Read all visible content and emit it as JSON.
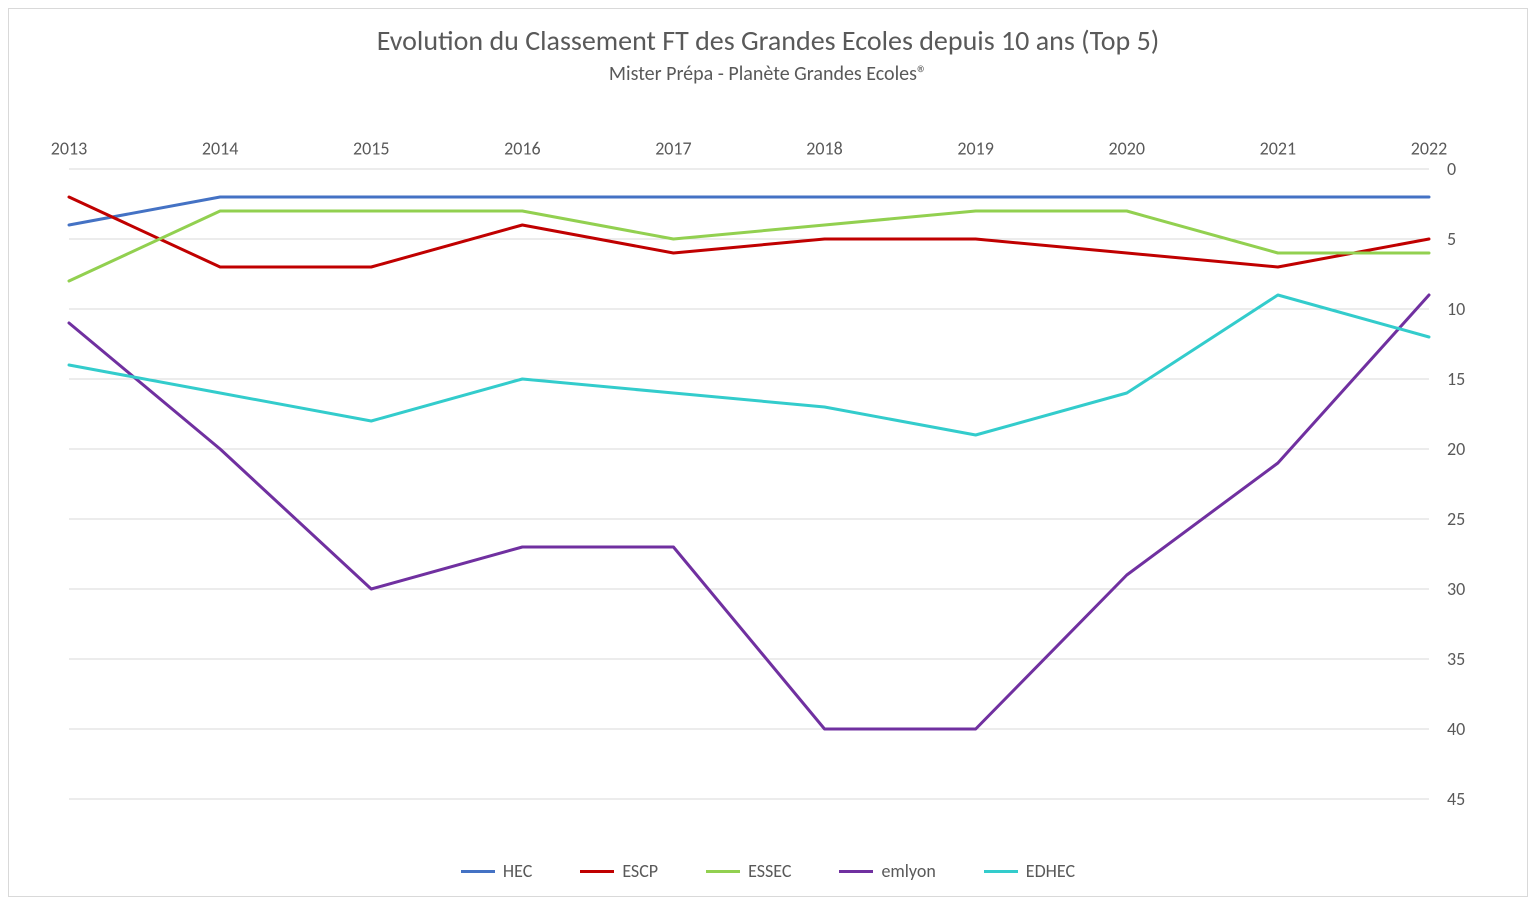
{
  "title": "Evolution du Classement FT des Grandes Ecoles depuis 10 ans (Top 5)",
  "subtitle": "Mister Prépa - Planète Grandes Ecoles®",
  "title_fontsize": 28,
  "subtitle_fontsize": 20,
  "text_color": "#595959",
  "background_color": "#ffffff",
  "frame_border_color": "#d9d9d9",
  "grid_color": "#d9d9d9",
  "chart": {
    "type": "line",
    "x_categories": [
      "2013",
      "2014",
      "2015",
      "2016",
      "2017",
      "2018",
      "2019",
      "2020",
      "2021",
      "2022"
    ],
    "y_axis": {
      "min": 0,
      "max": 45,
      "tick_step": 5,
      "position": "right",
      "inverted": true
    },
    "line_width": 3,
    "tick_fontsize": 18,
    "series": [
      {
        "name": "HEC",
        "color": "#4472c4",
        "values": [
          4,
          2,
          2,
          2,
          2,
          2,
          2,
          2,
          2,
          2
        ]
      },
      {
        "name": "ESCP",
        "color": "#c00000",
        "values": [
          2,
          7,
          7,
          4,
          6,
          5,
          5,
          6,
          7,
          5
        ]
      },
      {
        "name": "ESSEC",
        "color": "#92d050",
        "values": [
          8,
          3,
          3,
          3,
          5,
          4,
          3,
          3,
          6,
          6
        ]
      },
      {
        "name": "emlyon",
        "color": "#7030a0",
        "values": [
          11,
          20,
          30,
          27,
          27,
          40,
          40,
          29,
          21,
          9
        ]
      },
      {
        "name": "EDHEC",
        "color": "#33cccc",
        "values": [
          14,
          16,
          18,
          15,
          16,
          17,
          19,
          16,
          9,
          12
        ]
      }
    ]
  },
  "legend": {
    "position": "bottom",
    "fontsize": 18,
    "items": [
      "HEC",
      "ESCP",
      "ESSEC",
      "emlyon",
      "EDHEC"
    ]
  }
}
